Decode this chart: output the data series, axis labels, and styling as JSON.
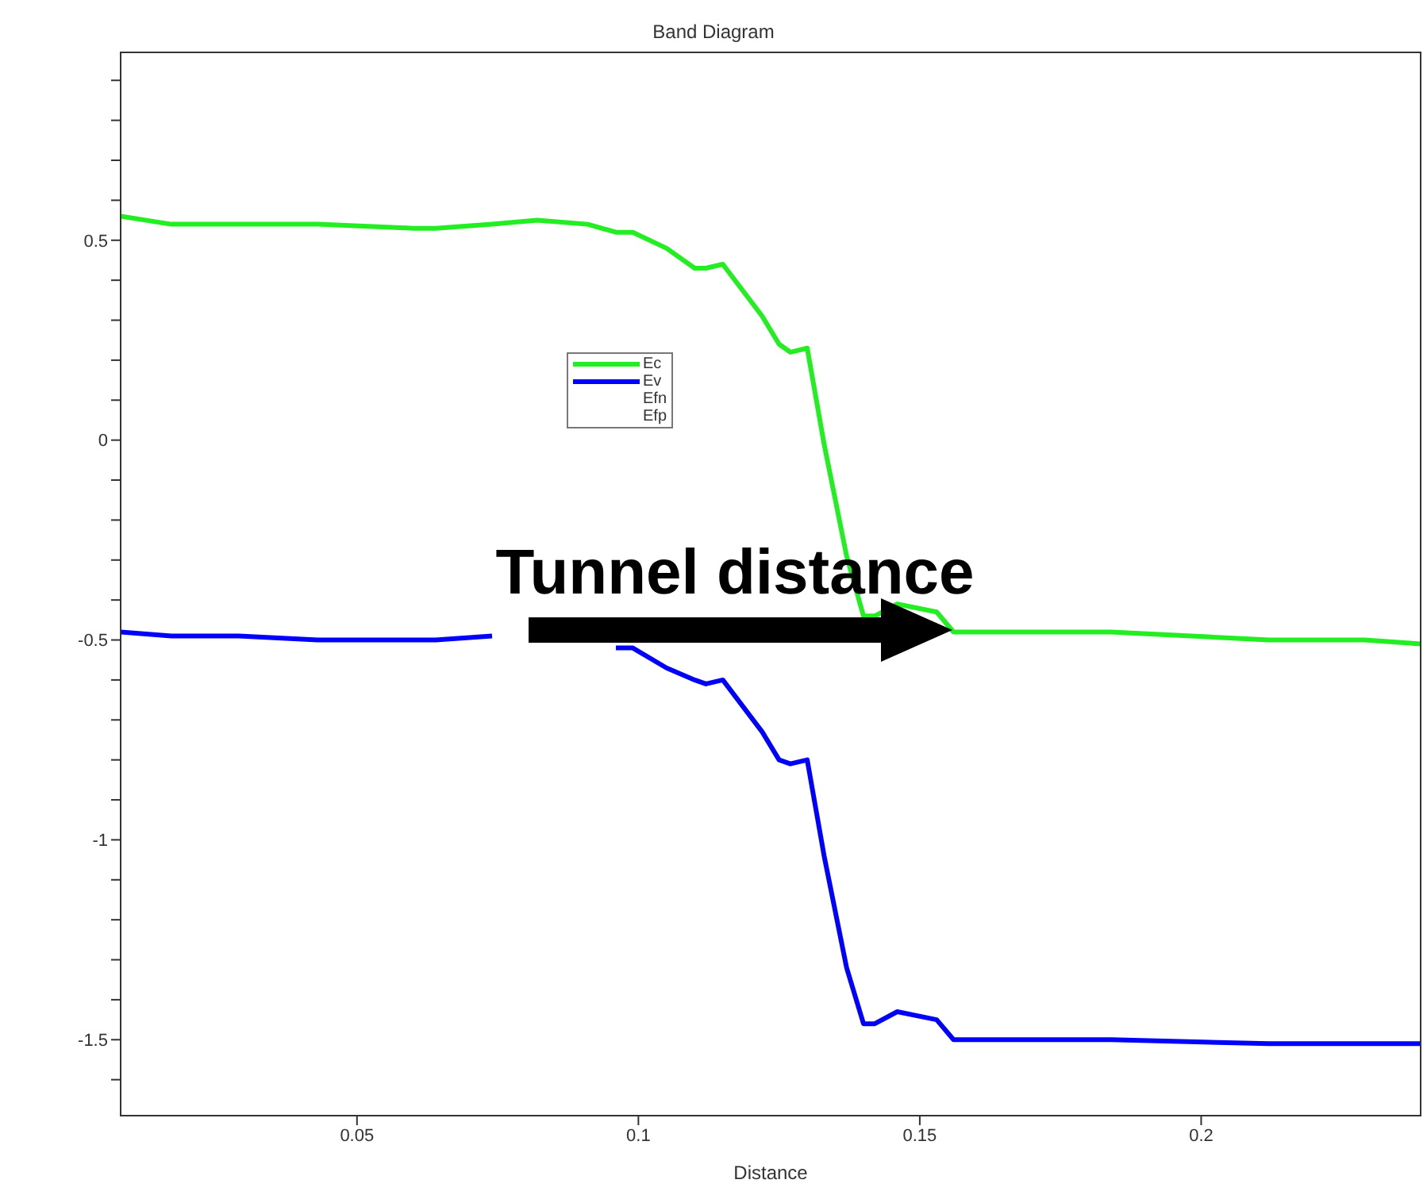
{
  "chart_data": {
    "type": "line",
    "title": "Band Diagram",
    "xlabel": "Distance",
    "x": [
      0.008,
      0.017,
      0.029,
      0.043,
      0.06,
      0.064,
      0.074,
      0.082,
      0.091,
      0.096,
      0.099,
      0.105,
      0.11,
      0.112,
      0.115,
      0.122,
      0.125,
      0.127,
      0.13,
      0.133,
      0.137,
      0.14,
      0.142,
      0.146,
      0.153,
      0.156,
      0.161,
      0.184,
      0.212,
      0.229,
      0.239
    ],
    "series": [
      {
        "name": "Ec",
        "color": "#22ee22",
        "values": [
          0.56,
          0.54,
          0.54,
          0.54,
          0.53,
          0.53,
          0.54,
          0.55,
          0.54,
          0.52,
          0.52,
          0.48,
          0.43,
          0.43,
          0.44,
          0.31,
          0.24,
          0.22,
          0.23,
          -0.01,
          -0.29,
          -0.44,
          -0.44,
          -0.41,
          -0.43,
          -0.48,
          -0.48,
          -0.48,
          -0.5,
          -0.5,
          -0.51
        ]
      },
      {
        "name": "Ev",
        "color": "#0000ff",
        "values": [
          -0.48,
          -0.49,
          -0.49,
          -0.5,
          -0.5,
          -0.5,
          -0.49,
          null,
          null,
          -0.52,
          -0.52,
          -0.57,
          -0.6,
          -0.61,
          -0.6,
          -0.73,
          -0.8,
          -0.81,
          -0.8,
          -1.04,
          -1.32,
          -1.46,
          -1.46,
          -1.43,
          -1.45,
          -1.5,
          -1.5,
          -1.5,
          -1.51,
          -1.51,
          -1.51
        ]
      },
      {
        "name": "Efn",
        "values": [
          null,
          null,
          null,
          null,
          null,
          null,
          null,
          null,
          null,
          null,
          null,
          null,
          null,
          null,
          null,
          null,
          null,
          null,
          null,
          null,
          null,
          null,
          null,
          null,
          null,
          null,
          null,
          null,
          null,
          null,
          null
        ]
      },
      {
        "name": "Efp",
        "values": [
          null,
          null,
          null,
          null,
          null,
          null,
          null,
          null,
          null,
          null,
          null,
          null,
          null,
          null,
          null,
          null,
          null,
          null,
          null,
          null,
          null,
          null,
          null,
          null,
          null,
          null,
          null,
          null,
          null,
          null,
          null
        ]
      }
    ],
    "xlim": [
      0.008,
      0.239
    ],
    "xticks": [
      0.05,
      0.1,
      0.15,
      0.2
    ],
    "ylim": [
      -1.69,
      0.97
    ],
    "yticks": [
      {
        "value": -1.6,
        "label": null
      },
      -1.5,
      {
        "value": -1.4,
        "label": null
      },
      {
        "value": -1.3,
        "label": null
      },
      {
        "value": -1.2,
        "label": null
      },
      {
        "value": -1.1,
        "label": null
      },
      -1,
      {
        "value": -0.9,
        "label": null
      },
      {
        "value": -0.8,
        "label": null
      },
      {
        "value": -0.7,
        "label": null
      },
      {
        "value": -0.6,
        "label": null
      },
      -0.5,
      {
        "value": -0.4,
        "label": null
      },
      {
        "value": -0.3,
        "label": null
      },
      {
        "value": -0.2,
        "label": null
      },
      {
        "value": -0.1,
        "label": null
      },
      0,
      {
        "value": 0.1,
        "label": null
      },
      {
        "value": 0.2,
        "label": null
      },
      {
        "value": 0.3,
        "label": null
      },
      {
        "value": 0.4,
        "label": null
      },
      0.5,
      {
        "value": 0.6,
        "label": null
      },
      {
        "value": 0.7,
        "label": null
      },
      {
        "value": 0.8,
        "label": null
      },
      {
        "value": 0.9,
        "label": null
      }
    ],
    "annotations": [
      "Tunnel distance"
    ],
    "grid": false,
    "legend": "top left",
    "marker": "none",
    "line_style": "solid"
  }
}
